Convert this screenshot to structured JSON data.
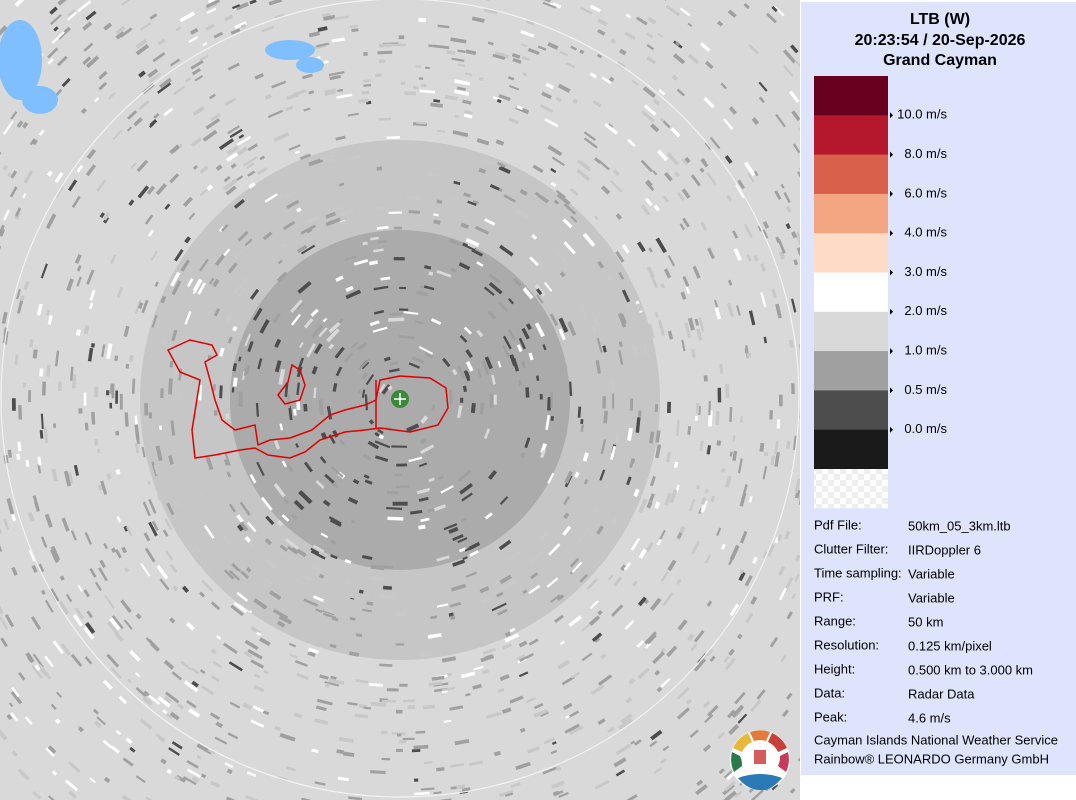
{
  "header": {
    "station": "LTB (W)",
    "time": "20:23:54 / 20-Sep-2026",
    "location": "Grand Cayman"
  },
  "legend": {
    "colors": [
      "#680020",
      "#b5182d",
      "#d9604b",
      "#f4a582",
      "#fddbc7",
      "#ffffff",
      "#d9d9d9",
      "#a0a0a0",
      "#4d4d4d",
      "#1a1a1a"
    ],
    "labels": [
      "10.0 m/s",
      "8.0 m/s",
      "6.0 m/s",
      "4.0 m/s",
      "3.0 m/s",
      "2.0 m/s",
      "1.0 m/s",
      "0.5 m/s",
      "0.0 m/s"
    ]
  },
  "info": [
    {
      "label": "Pdf File:",
      "value": "50km_05_3km.ltb"
    },
    {
      "label": "Clutter Filter:",
      "value": "IIRDoppler 6"
    },
    {
      "label": "Time sampling:",
      "value": "Variable"
    },
    {
      "label": "PRF:",
      "value": "Variable"
    },
    {
      "label": "Range:",
      "value": "50 km"
    },
    {
      "label": "Resolution:",
      "value": "0.125 km/pixel"
    },
    {
      "label": "Height:",
      "value": "0.500 km to 3.000 km"
    },
    {
      "label": "Data:",
      "value": "Radar Data"
    },
    {
      "label": "Peak:",
      "value": "4.6 m/s"
    }
  ],
  "footer": [
    "Cayman Islands National Weather Service",
    "Rainbow® LEONARDO Germany GmbH"
  ]
}
